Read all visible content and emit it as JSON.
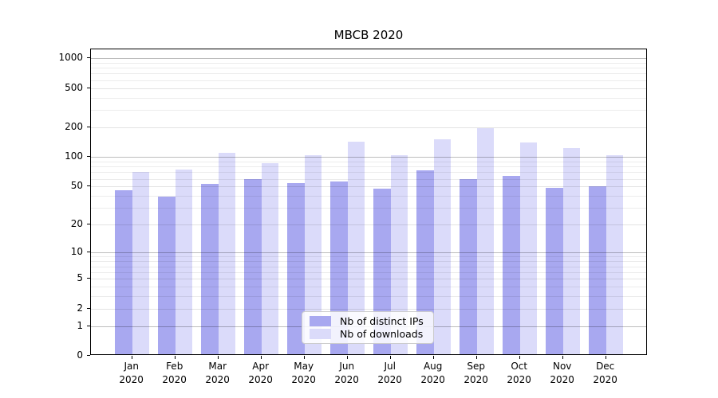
{
  "figure": {
    "background": "#ffffff"
  },
  "chart_data": {
    "type": "bar",
    "title": "MBCB 2020",
    "xlabel": "",
    "ylabel": "",
    "year": "2020",
    "months": [
      "Jan",
      "Feb",
      "Mar",
      "Apr",
      "May",
      "Jun",
      "Jul",
      "Aug",
      "Sep",
      "Oct",
      "Nov",
      "Dec"
    ],
    "categories": [
      "Jan 2020",
      "Feb 2020",
      "Mar 2020",
      "Apr 2020",
      "May 2020",
      "Jun 2020",
      "Jul 2020",
      "Aug 2020",
      "Sep 2020",
      "Oct 2020",
      "Nov 2020",
      "Dec 2020"
    ],
    "series": [
      {
        "name": "Nb of distinct IPs",
        "color": "#a8a8f0",
        "values": [
          44,
          38,
          51,
          57,
          52,
          54,
          46,
          70,
          57,
          62,
          47,
          48
        ]
      },
      {
        "name": "Nb of downloads",
        "color": "#dbdbfa",
        "values": [
          68,
          72,
          106,
          84,
          100,
          139,
          100,
          145,
          190,
          135,
          120,
          100
        ]
      }
    ],
    "yscale": "log1p",
    "y_ticks": [
      0,
      1,
      2,
      5,
      10,
      20,
      50,
      100,
      200,
      500,
      1000
    ],
    "y_major_ticks": [
      1,
      10,
      100,
      1000
    ],
    "ylim": [
      0,
      1230
    ],
    "grid": "horizontal",
    "legend_position": "lower center",
    "grid_colors": {
      "major": "#bdbdbd",
      "labeled": "#e3e3e3",
      "minor": "#efefef"
    }
  }
}
